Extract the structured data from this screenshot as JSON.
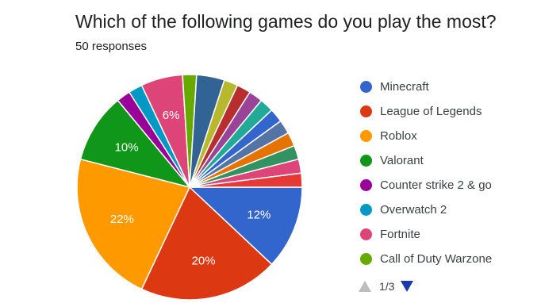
{
  "header": {
    "question": "Which of the following games do you play the most?",
    "responses": "50 responses"
  },
  "legend": {
    "pager_text": "1/3"
  },
  "chart_data": {
    "type": "pie",
    "slices": [
      {
        "name": "Minecraft",
        "value": 12,
        "label": "12%",
        "color": "#3366cc"
      },
      {
        "name": "League of Legends",
        "value": 20,
        "label": "20%",
        "color": "#dc3912"
      },
      {
        "name": "Roblox",
        "value": 22,
        "label": "22%",
        "color": "#ff9900"
      },
      {
        "name": "Valorant",
        "value": 10,
        "label": "10%",
        "color": "#109618"
      },
      {
        "name": "Counter strike 2 & go",
        "value": 2,
        "label": "",
        "color": "#990099"
      },
      {
        "name": "Overwatch 2",
        "value": 2,
        "label": "",
        "color": "#0099c6"
      },
      {
        "name": "Fortnite",
        "value": 6,
        "label": "6%",
        "color": "#dd4477"
      },
      {
        "name": "Call of Duty Warzone",
        "value": 2,
        "label": "",
        "color": "#66aa00"
      },
      {
        "name": "",
        "value": 4,
        "label": "",
        "color": "#316395"
      },
      {
        "name": "",
        "value": 2,
        "label": "",
        "color": "#b8b82e"
      },
      {
        "name": "",
        "value": 2,
        "label": "",
        "color": "#b82e2e"
      },
      {
        "name": "",
        "value": 2,
        "label": "",
        "color": "#994499"
      },
      {
        "name": "",
        "value": 2,
        "label": "",
        "color": "#22aa99"
      },
      {
        "name": "",
        "value": 2,
        "label": "",
        "color": "#3366cc"
      },
      {
        "name": "",
        "value": 2,
        "label": "",
        "color": "#5574a6"
      },
      {
        "name": "",
        "value": 2,
        "label": "",
        "color": "#e67300"
      },
      {
        "name": "",
        "value": 2,
        "label": "",
        "color": "#329262"
      },
      {
        "name": "",
        "value": 2,
        "label": "",
        "color": "#dd4477"
      },
      {
        "name": "",
        "value": 2,
        "label": "",
        "color": "#e53935"
      }
    ],
    "legend_placement": "right"
  }
}
